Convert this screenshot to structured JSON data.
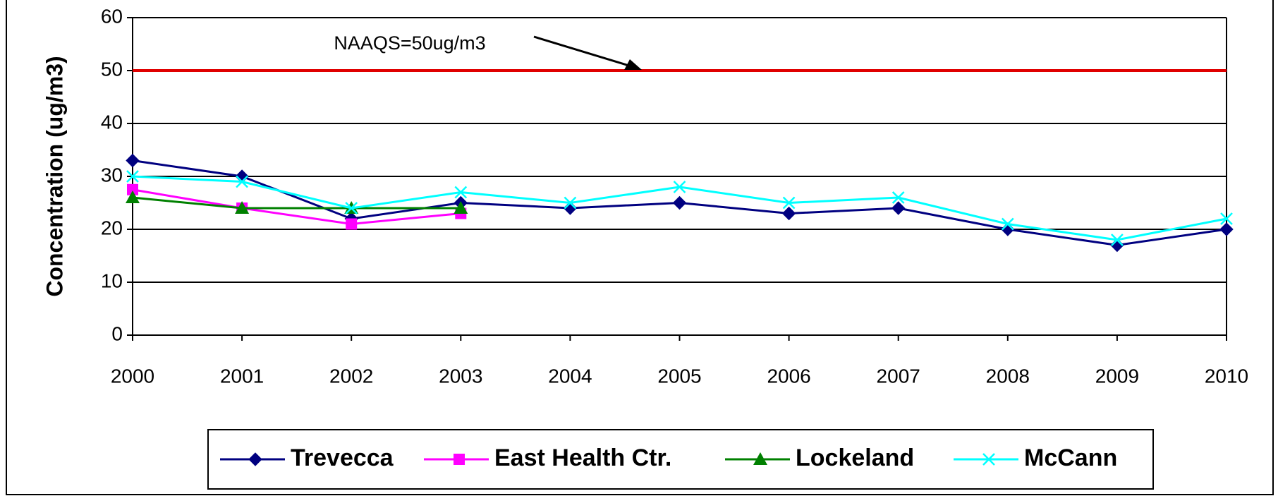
{
  "chart_data": {
    "type": "line",
    "y_label": "Concentration (ug/m3)",
    "x": [
      2000,
      2001,
      2002,
      2003,
      2004,
      2005,
      2006,
      2007,
      2008,
      2009,
      2010
    ],
    "xlim": [
      2000,
      2010
    ],
    "xticks": [
      2000,
      2001,
      2002,
      2003,
      2004,
      2005,
      2006,
      2007,
      2008,
      2009,
      2010
    ],
    "ylim": [
      0,
      60
    ],
    "yticks": [
      0,
      10,
      20,
      30,
      40,
      50,
      60
    ],
    "grid": true,
    "reference_line": {
      "value": 50,
      "color": "#e00000"
    },
    "annotation": "NAAQS=50ug/m3",
    "legend": "bottom",
    "series": [
      {
        "name": "Trevecca",
        "color": "#000080",
        "marker": "diamond",
        "values": [
          33,
          30,
          22,
          25,
          24,
          25,
          23,
          24,
          20,
          17,
          20
        ]
      },
      {
        "name": "East Health Ctr.",
        "color": "#ff00ff",
        "marker": "square",
        "values": [
          27.5,
          24,
          21,
          23,
          null,
          null,
          null,
          null,
          null,
          null,
          null
        ]
      },
      {
        "name": "Lockeland",
        "color": "#008000",
        "marker": "triangle",
        "values": [
          26,
          24,
          24,
          24,
          null,
          null,
          null,
          null,
          null,
          null,
          null
        ]
      },
      {
        "name": "McCann",
        "color": "#00ffff",
        "marker": "x",
        "values": [
          30,
          29,
          24,
          27,
          25,
          28,
          25,
          26,
          21,
          18,
          22
        ]
      }
    ]
  }
}
